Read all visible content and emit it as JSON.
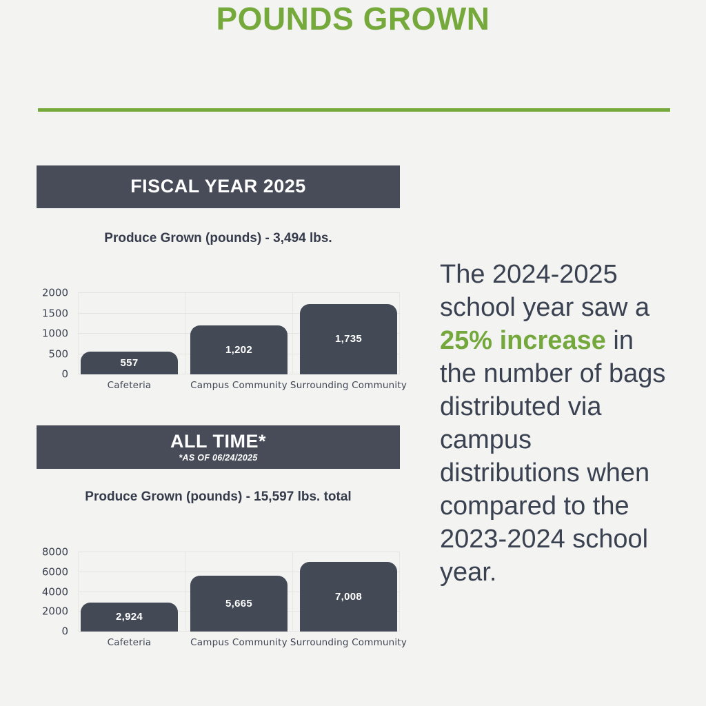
{
  "page": {
    "background_color": "#f3f3f1",
    "accent_color": "#76a93c",
    "banner_color": "#474c58",
    "text_color": "#3a4150"
  },
  "header": {
    "title": "POUNDS GROWN"
  },
  "fiscal_section": {
    "banner_label": "FISCAL YEAR 2025",
    "chart_title": "Produce Grown (pounds) - 3,494 lbs."
  },
  "alltime_section": {
    "banner_label": "ALL TIME*",
    "banner_note": "*AS OF 06/24/2025",
    "chart_title": "Produce Grown (pounds) - 15,597 lbs. total"
  },
  "sidebar_text": {
    "before": "The 2024-2025 school year saw a ",
    "highlight": "25% increase",
    "after": " in the number of bags distributed via campus distributions when compared to the 2023-2024 school year."
  },
  "chart_data": [
    {
      "type": "bar",
      "title": "Produce Grown (pounds) - 3,494 lbs.",
      "categories": [
        "Cafeteria",
        "Campus Community",
        "Surrounding Community"
      ],
      "values": [
        557,
        1202,
        1735
      ],
      "value_labels": [
        "557",
        "1,202",
        "1,735"
      ],
      "total": 3494,
      "yticks": [
        0,
        500,
        1000,
        1500,
        2000
      ],
      "ylim": [
        0,
        2000
      ],
      "xlabel": "",
      "ylabel": "",
      "bar_color": "#434955",
      "grid": true,
      "legend": false
    },
    {
      "type": "bar",
      "title": "Produce Grown (pounds) - 15,597 lbs. total",
      "categories": [
        "Cafeteria",
        "Campus Community",
        "Surrounding Community"
      ],
      "values": [
        2924,
        5665,
        7008
      ],
      "value_labels": [
        "2,924",
        "5,665",
        "7,008"
      ],
      "total": 15597,
      "yticks": [
        0,
        2000,
        4000,
        6000,
        8000
      ],
      "ylim": [
        0,
        8000
      ],
      "xlabel": "",
      "ylabel": "",
      "bar_color": "#434955",
      "grid": true,
      "legend": false
    }
  ]
}
